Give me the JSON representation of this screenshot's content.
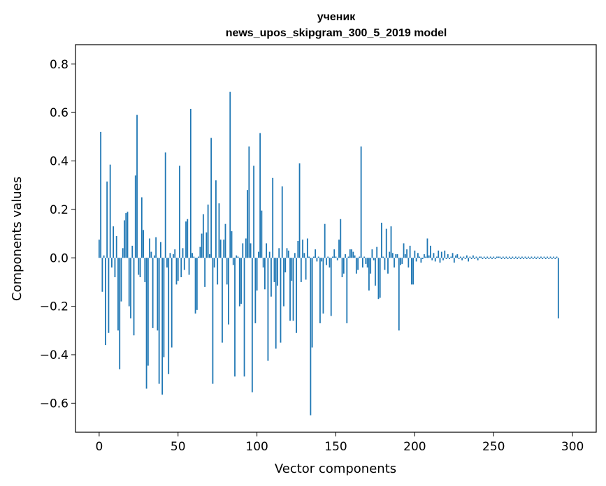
{
  "chart_data": {
    "type": "bar",
    "title": "ученик",
    "subtitle": "news_upos_skipgram_300_5_2019 model",
    "xlabel": "Vector components",
    "ylabel": "Components values",
    "xlim": [
      -15,
      315
    ],
    "ylim": [
      -0.72,
      0.88
    ],
    "xticks": [
      0,
      50,
      100,
      150,
      200,
      250,
      300
    ],
    "xtick_labels": [
      "0",
      "50",
      "100",
      "150",
      "200",
      "250",
      "300"
    ],
    "yticks": [
      -0.6,
      -0.4,
      -0.2,
      0.0,
      0.2,
      0.4,
      0.6,
      0.8
    ],
    "ytick_labels": [
      "−0.6",
      "−0.4",
      "−0.2",
      "0.0",
      "0.2",
      "0.4",
      "0.6",
      "0.8"
    ],
    "color": "#1f77b4",
    "values": [
      0.075,
      0.52,
      -0.14,
      0.01,
      -0.36,
      0.315,
      -0.31,
      0.385,
      -0.04,
      0.13,
      -0.08,
      0.09,
      -0.3,
      -0.46,
      -0.18,
      0.04,
      0.155,
      0.185,
      0.19,
      -0.2,
      -0.25,
      0.05,
      -0.32,
      0.34,
      0.59,
      -0.07,
      -0.08,
      0.25,
      0.115,
      -0.1,
      -0.54,
      -0.445,
      0.08,
      0.025,
      -0.29,
      0.01,
      0.085,
      -0.3,
      -0.52,
      0.065,
      -0.565,
      -0.41,
      0.435,
      -0.04,
      -0.48,
      0.02,
      -0.37,
      0.015,
      0.035,
      -0.11,
      -0.095,
      0.38,
      -0.08,
      0.04,
      -0.05,
      0.15,
      0.16,
      -0.07,
      0.615,
      0.02,
      0.005,
      -0.23,
      -0.215,
      0.005,
      0.045,
      0.1,
      0.18,
      -0.12,
      0.105,
      0.22,
      0.015,
      0.495,
      -0.52,
      -0.04,
      0.32,
      -0.11,
      0.225,
      0.075,
      -0.35,
      0.075,
      0.14,
      -0.11,
      -0.275,
      0.685,
      0.11,
      -0.03,
      -0.49,
      0.01,
      0.005,
      -0.2,
      -0.19,
      0.06,
      -0.49,
      0.08,
      0.28,
      0.46,
      0.06,
      -0.555,
      0.38,
      -0.27,
      -0.135,
      0.025,
      0.515,
      0.195,
      -0.04,
      -0.13,
      0.06,
      -0.425,
      0.025,
      -0.16,
      0.33,
      -0.1,
      -0.375,
      -0.115,
      0.04,
      -0.35,
      0.295,
      -0.2,
      -0.06,
      0.04,
      0.03,
      -0.26,
      -0.095,
      -0.26,
      0.02,
      -0.31,
      0.07,
      0.39,
      -0.1,
      0.075,
      0.02,
      -0.09,
      0.08,
      0.005,
      -0.65,
      -0.37,
      0.005,
      0.035,
      -0.015,
      0.005,
      -0.27,
      -0.015,
      -0.23,
      0.14,
      -0.03,
      0.005,
      -0.04,
      -0.24,
      0.005,
      0.035,
      0.005,
      -0.01,
      0.075,
      0.16,
      -0.08,
      -0.065,
      0.015,
      -0.27,
      0.005,
      0.035,
      0.035,
      0.025,
      0.01,
      -0.065,
      -0.05,
      0.005,
      0.46,
      -0.04,
      0.005,
      -0.025,
      -0.04,
      -0.135,
      -0.065,
      0.035,
      -0.01,
      -0.115,
      0.045,
      -0.17,
      -0.165,
      0.145,
      0.005,
      -0.05,
      0.12,
      -0.065,
      0.025,
      0.13,
      0.02,
      -0.04,
      0.015,
      0.015,
      -0.3,
      -0.03,
      -0.025,
      0.06,
      0.015,
      0.035,
      -0.04,
      0.05,
      -0.11,
      -0.11,
      0.03,
      -0.015,
      0.02,
      0.005,
      -0.02,
      -0.005,
      0.015,
      0.005,
      0.08,
      0.01,
      0.05,
      -0.01,
      0.02,
      -0.015,
      0.005,
      0.03,
      -0.02,
      0.025,
      -0.01,
      0.03,
      -0.005,
      0.015,
      -0.005,
      0.005,
      0.02,
      -0.02,
      0.01,
      0.015,
      -0.005,
      0.005,
      -0.01,
      0.005,
      -0.005,
      0.01,
      -0.015,
      0.005,
      -0.005,
      0.01,
      -0.005,
      0.005,
      -0.01,
      0.005,
      0.005,
      -0.005,
      0.005,
      -0.005,
      0.005,
      -0.005,
      0.005,
      -0.005,
      0.005,
      -0.005,
      0.005,
      0.005,
      0.005,
      -0.005,
      0.005,
      -0.005,
      0.005,
      -0.005,
      0.005,
      -0.005,
      0.005,
      -0.005,
      0.005,
      -0.005,
      0.005,
      -0.005,
      0.005,
      -0.005,
      0.005,
      -0.005,
      0.005,
      -0.005,
      0.005,
      -0.005,
      0.005,
      -0.005,
      0.005,
      -0.005,
      0.005,
      -0.005,
      0.005,
      -0.005,
      0.005,
      -0.005,
      0.005,
      -0.005,
      0.005,
      -0.005,
      0.005,
      -0.25
    ]
  }
}
